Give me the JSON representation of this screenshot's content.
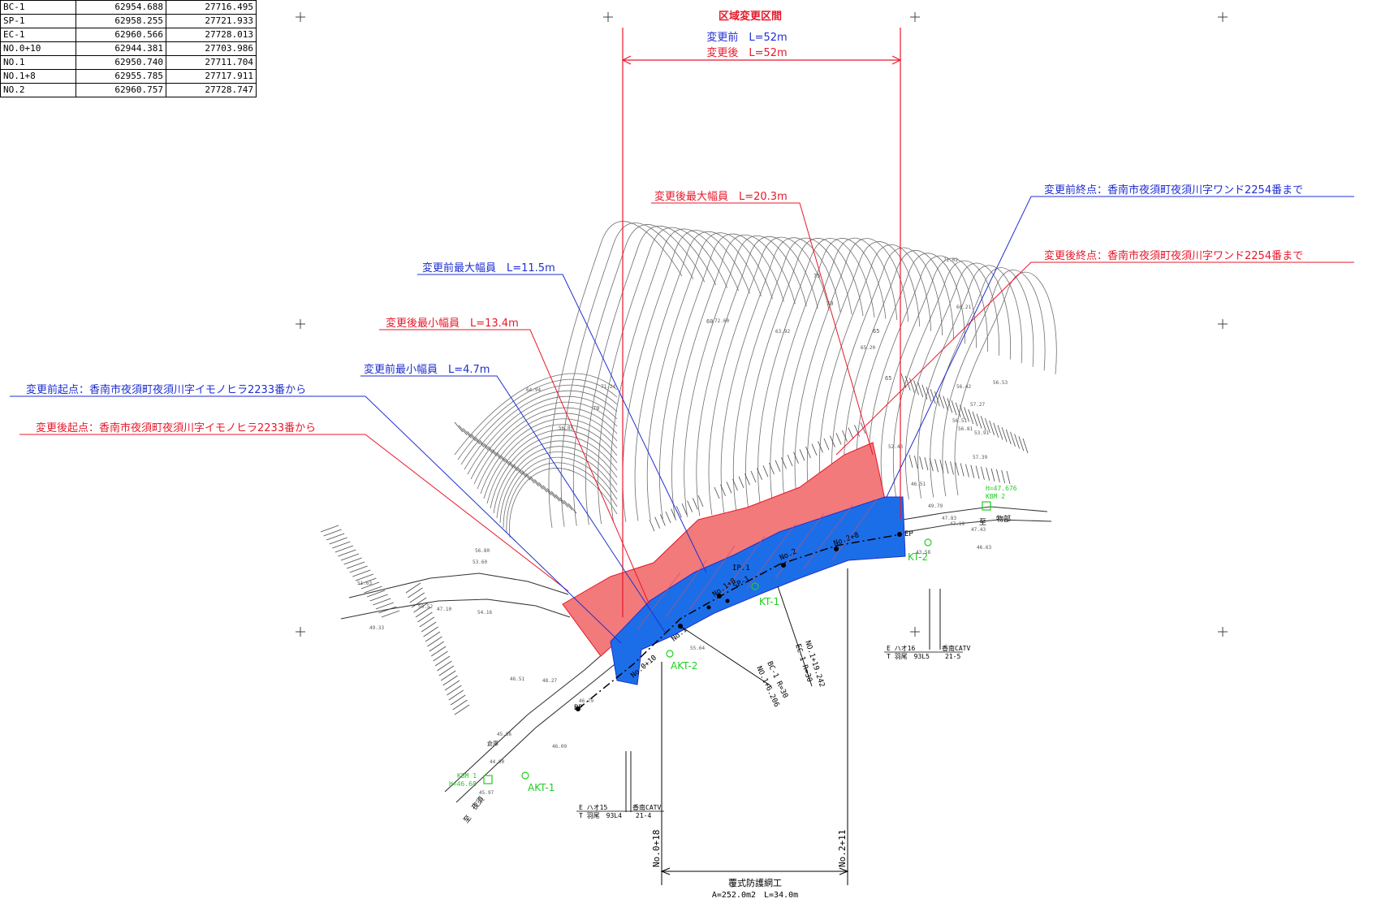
{
  "coord_table": {
    "rows": [
      [
        "BC-1",
        "62954.688",
        "27716.495"
      ],
      [
        "SP-1",
        "62958.255",
        "27721.933"
      ],
      [
        "EC-1",
        "62960.566",
        "27728.013"
      ],
      [
        "NO.0+10",
        "62944.381",
        "27703.986"
      ],
      [
        "NO.1",
        "62950.740",
        "27711.704"
      ],
      [
        "NO.1+8",
        "62955.785",
        "27717.911"
      ],
      [
        "NO.2",
        "62960.757",
        "27728.747"
      ]
    ]
  },
  "colors": {
    "before": "#1f2fd0",
    "after": "#e8182a",
    "fill_after": "#f27a7a",
    "fill_before": "#1c6ee8",
    "survey": "#22cc22",
    "contour": "#6e6e6e"
  },
  "header": {
    "title": "区域変更区間",
    "before_len": "変更前　L=52m",
    "after_len": "変更後　L=52m"
  },
  "callouts": {
    "after_max_width": "変更後最大幅員　L=20.3m",
    "before_end": "変更前終点：香南市夜須町夜須川字ワンド2254番まで",
    "after_end": "変更後終点：香南市夜須町夜須川字ワンド2254番まで",
    "before_max_width": "変更前最大幅員　L=11.5m",
    "after_min_width": "変更後最小幅員　L=13.4m",
    "before_min_width": "変更前最小幅員　L=4.7m",
    "before_start": "変更前起点：香南市夜須町夜須川字イモノヒラ2233番から",
    "after_start": "変更後起点：香南市夜須町夜須川字イモノヒラ2233番から"
  },
  "stations": {
    "no0_10": "No.0+10",
    "no1": "No.1",
    "no1_8": "No.1+8",
    "no2": "No.2",
    "no2_8": "No.2+8",
    "bp": "BP",
    "ep": "EP",
    "ip1": "IP.1",
    "sp1": "SP-1",
    "bc1": "BC-1 R=30",
    "bc1b": "NO.1+6.206",
    "ec1": "NO.1+19.242",
    "ec1b": "EC-1 R=30"
  },
  "survey_points": {
    "kt1": "KT-1",
    "kt2": "KT-2",
    "akt1": "AKT-1",
    "akt2": "AKT-2",
    "kbm2_h": "H=47.676",
    "kbm2": "KBM 2",
    "kbm_left": "KBM 1",
    "kbm_left_h": "H=46.68"
  },
  "poles": {
    "left_e": "E ハオ15",
    "left_t": "T 羽尾　93L4",
    "left_org": "香南CATV",
    "left_num": "21-4",
    "right_e": "E ハオ16",
    "right_t": "T 羽尾　93L5",
    "right_org": "香南CATV",
    "right_num": "21-5"
  },
  "roads": {
    "right_a": "至",
    "right_b": "物部",
    "left_a": "至",
    "left_b": "夜須"
  },
  "elevations": [
    "72.02",
    "66.21",
    "72.60",
    "63.92",
    "65.20",
    "64.94",
    "56.85",
    "56.80",
    "53.60",
    "54.16",
    "50.52",
    "51.63",
    "49.33",
    "47.10",
    "46.51",
    "48.27",
    "46.79",
    "45.66",
    "46.09",
    "44.90",
    "45.97",
    "49.79",
    "47.83",
    "47.19",
    "47.43",
    "46.63",
    "46.51",
    "52.43",
    "53.91",
    "56.42",
    "56.53",
    "57.27",
    "56.51",
    "56.81",
    "57.39",
    "71.24",
    "55.64",
    "43.58"
  ],
  "contour_labels": [
    "75",
    "70",
    "65",
    "60",
    "65",
    "70"
  ],
  "misc": {
    "house": "倉庫"
  },
  "bottom": {
    "sta_left": "No.0+18",
    "sta_right": "No.2+11",
    "work_name": "覆式防護網工",
    "work_dims": "A=252.0m2　L=34.0m"
  }
}
